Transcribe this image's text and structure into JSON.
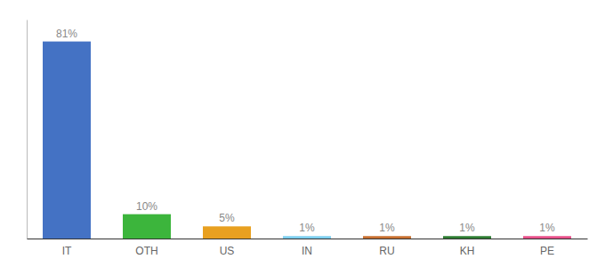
{
  "chart_data": {
    "type": "bar",
    "categories": [
      "IT",
      "OTH",
      "US",
      "IN",
      "RU",
      "KH",
      "PE"
    ],
    "values": [
      81,
      10,
      5,
      1,
      1,
      1,
      1
    ],
    "value_labels": [
      "81%",
      "10%",
      "5%",
      "1%",
      "1%",
      "1%",
      "1%"
    ],
    "colors": [
      "#4472c4",
      "#3cb53c",
      "#e8a020",
      "#7ecfef",
      "#c87030",
      "#2e7d32",
      "#e8508a"
    ],
    "ylim": [
      0,
      90
    ],
    "data_labels": true,
    "tick_labels": "x",
    "grid": false
  }
}
